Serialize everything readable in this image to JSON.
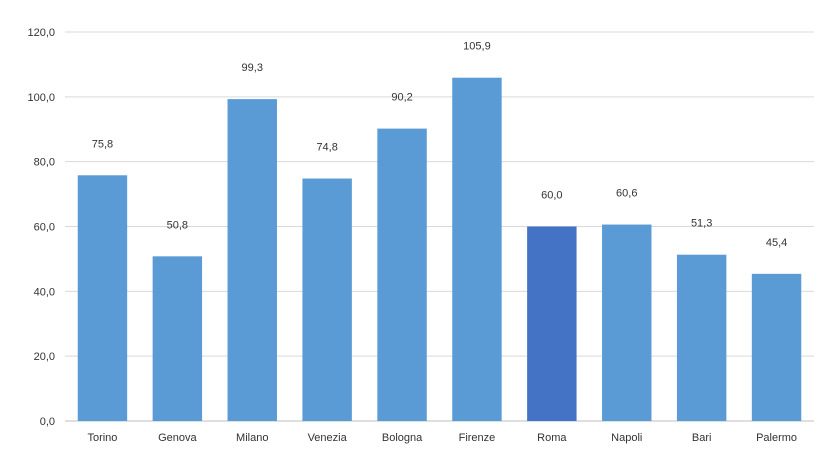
{
  "chart_data": {
    "type": "bar",
    "categories": [
      "Torino",
      "Genova",
      "Milano",
      "Venezia",
      "Bologna",
      "Firenze",
      "Roma",
      "Napoli",
      "Bari",
      "Palermo"
    ],
    "values": [
      75.8,
      50.8,
      99.3,
      74.8,
      90.2,
      105.9,
      60.0,
      60.6,
      51.3,
      45.4
    ],
    "value_labels": [
      "75,8",
      "50,8",
      "99,3",
      "74,8",
      "90,2",
      "105,9",
      "60,0",
      "60,6",
      "51,3",
      "45,4"
    ],
    "yticks": [
      "0,0",
      "20,0",
      "40,0",
      "60,0",
      "80,0",
      "100,0",
      "120,0"
    ],
    "ytick_values": [
      0,
      20,
      40,
      60,
      80,
      100,
      120
    ],
    "ylim": [
      0,
      120
    ],
    "grid": true,
    "legend": "none",
    "colors": {
      "bar": "#5b9bd5",
      "highlight": "#4472c4",
      "grid": "#d9d9d9"
    },
    "highlight_category": "Roma"
  }
}
